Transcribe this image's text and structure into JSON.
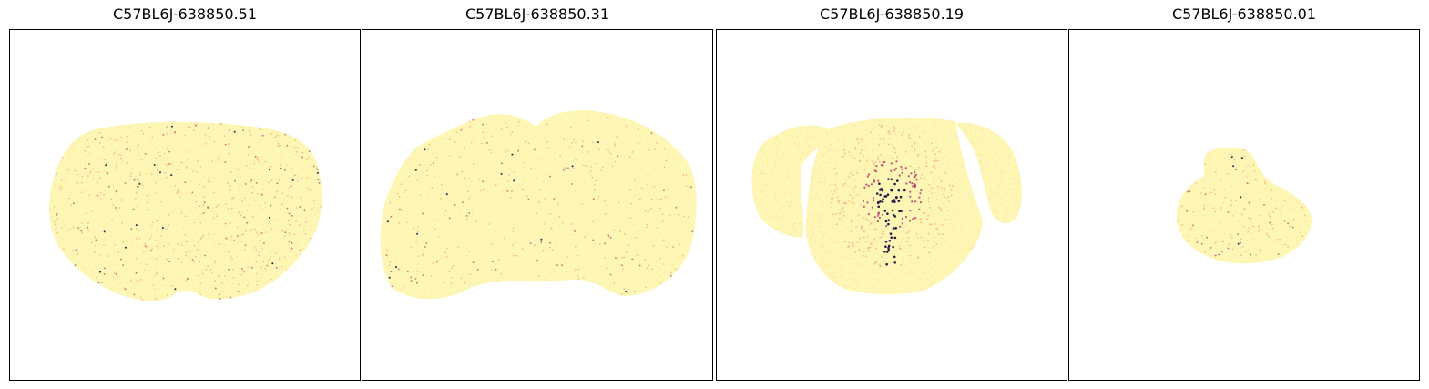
{
  "figure": {
    "colormap": "magma_r",
    "colors": {
      "tissue_base": "#fdf6b4",
      "low": "#fcd8a0",
      "mid": "#f2735c",
      "high": "#b4306a",
      "max": "#1c1040",
      "frame": "#000000",
      "background": "#ffffff"
    }
  },
  "chart_data": [
    {
      "type": "scatter",
      "title": "C57BL6J-638850.51",
      "xlabel": "",
      "ylabel": "",
      "ticks": "hidden",
      "grid": false,
      "expression_level": "moderate, scattered across section"
    },
    {
      "type": "scatter",
      "title": "C57BL6J-638850.31",
      "xlabel": "",
      "ylabel": "",
      "ticks": "hidden",
      "grid": false,
      "expression_level": "low-moderate, scattered across section"
    },
    {
      "type": "scatter",
      "title": "C57BL6J-638850.19",
      "xlabel": "",
      "ylabel": "",
      "ticks": "hidden",
      "grid": false,
      "expression_level": "high, concentrated at midline"
    },
    {
      "type": "scatter",
      "title": "C57BL6J-638850.01",
      "xlabel": "",
      "ylabel": "",
      "ticks": "hidden",
      "grid": false,
      "expression_level": "low, sparse"
    }
  ]
}
